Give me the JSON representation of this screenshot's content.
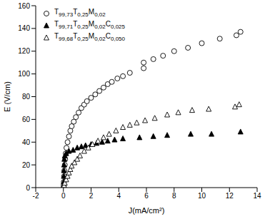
{
  "chart_data": {
    "type": "scatter",
    "x_label": "J(mA/cm²)",
    "y_label": "E (V/cm)",
    "xlim": [
      -2,
      14
    ],
    "xticks": [
      -2,
      0,
      2,
      4,
      6,
      8,
      10,
      12,
      14
    ],
    "ylim": [
      0,
      160
    ],
    "yticks": [
      0,
      20,
      40,
      60,
      80,
      100,
      120,
      140,
      160
    ],
    "legend": "upper left",
    "series": [
      {
        "name": "T99,73T0,25M0,02",
        "color": "#000000",
        "marker": "circle-open",
        "x": [
          0.02,
          0.03,
          0.05,
          0.07,
          0.1,
          0.13,
          0.17,
          0.22,
          0.3,
          0.4,
          0.5,
          0.6,
          0.75,
          0.9,
          1.1,
          1.3,
          1.5,
          1.7,
          2.0,
          2.3,
          2.6,
          2.9,
          3.2,
          3.5,
          3.9,
          4.3,
          4.8,
          5.8,
          5.8,
          6.5,
          7.2,
          8.0,
          9.0,
          10.0,
          11.3,
          12.5,
          12.8
        ],
        "values": [
          2,
          5,
          10,
          15,
          20,
          25,
          30,
          35,
          40,
          45,
          50,
          54,
          58,
          62,
          66,
          70,
          73,
          76,
          79,
          82,
          85,
          88,
          91,
          93,
          96,
          98,
          101,
          105,
          110,
          113,
          116,
          120,
          123,
          127,
          131,
          134,
          137
        ]
      },
      {
        "name": "T99,71T0,25M0,02C0,025",
        "color": "#000000",
        "marker": "triangle-filled",
        "x": [
          0.01,
          0.02,
          0.03,
          0.04,
          0.05,
          0.07,
          0.1,
          0.2,
          0.4,
          0.7,
          1.0,
          1.3,
          1.6,
          2.0,
          2.4,
          2.8,
          3.2,
          3.7,
          4.3,
          5.5,
          6.5,
          7.5,
          9.2,
          10.7,
          12.8
        ],
        "values": [
          2,
          5,
          10,
          15,
          20,
          25,
          28,
          30,
          32,
          33,
          35,
          36,
          37,
          38,
          39,
          40,
          41,
          42,
          43,
          44,
          45,
          46,
          47,
          47,
          49
        ]
      },
      {
        "name": "T99,68T0,25M0,02C0,050",
        "color": "#000000",
        "marker": "triangle-open",
        "x": [
          0.05,
          0.1,
          0.2,
          0.3,
          0.4,
          0.5,
          0.6,
          0.8,
          1.0,
          1.2,
          1.5,
          1.8,
          2.1,
          2.5,
          2.9,
          3.3,
          3.8,
          4.3,
          4.8,
          5.3,
          5.9,
          6.6,
          7.5,
          8.3,
          9.3,
          10.5,
          12.4,
          12.7
        ],
        "values": [
          2,
          4,
          7,
          10,
          13,
          16,
          19,
          22,
          25,
          28,
          32,
          35,
          38,
          41,
          44,
          47,
          50,
          53,
          55,
          57,
          59,
          61,
          64,
          66,
          68,
          69,
          71,
          73
        ]
      }
    ]
  }
}
